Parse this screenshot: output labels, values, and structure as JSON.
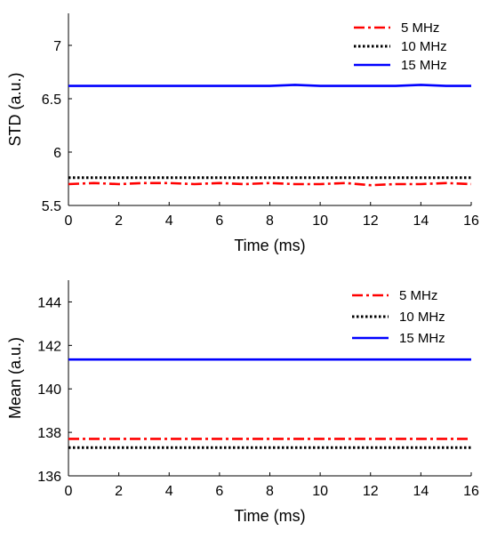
{
  "chart_data": [
    {
      "type": "line",
      "xlabel": "Time (ms)",
      "ylabel": "STD (a.u.)",
      "xlim": [
        0,
        16
      ],
      "ylim": [
        5.5,
        7.3
      ],
      "xticks": [
        0,
        2,
        4,
        6,
        8,
        10,
        12,
        14,
        16
      ],
      "xtick_labels": [
        "0",
        "2",
        "4",
        "6",
        "8",
        "10",
        "12",
        "14",
        "16"
      ],
      "yticks": [
        5.5,
        6,
        6.5,
        7
      ],
      "ytick_labels": [
        "5.5",
        "6",
        "6.5",
        "7"
      ],
      "grid": false,
      "legend_position": "top-right",
      "x": [
        0,
        1,
        2,
        3,
        4,
        5,
        6,
        7,
        8,
        9,
        10,
        11,
        12,
        13,
        14,
        15,
        16
      ],
      "series": [
        {
          "name": "5 MHz",
          "color": "#ff0000",
          "dash": "dash-dot",
          "values": [
            5.7,
            5.71,
            5.7,
            5.71,
            5.71,
            5.7,
            5.71,
            5.7,
            5.71,
            5.7,
            5.7,
            5.71,
            5.69,
            5.7,
            5.7,
            5.71,
            5.7
          ]
        },
        {
          "name": "10 MHz",
          "color": "#000000",
          "dash": "dotted",
          "values": [
            5.76,
            5.76,
            5.76,
            5.76,
            5.76,
            5.76,
            5.76,
            5.76,
            5.76,
            5.76,
            5.76,
            5.76,
            5.76,
            5.76,
            5.76,
            5.76,
            5.76
          ]
        },
        {
          "name": "15 MHz",
          "color": "#0000ff",
          "dash": "solid",
          "values": [
            6.62,
            6.62,
            6.62,
            6.62,
            6.62,
            6.62,
            6.62,
            6.62,
            6.62,
            6.63,
            6.62,
            6.62,
            6.62,
            6.62,
            6.63,
            6.62,
            6.62
          ]
        }
      ]
    },
    {
      "type": "line",
      "xlabel": "Time (ms)",
      "ylabel": "Mean (a.u.)",
      "xlim": [
        0,
        16
      ],
      "ylim": [
        136,
        145
      ],
      "xticks": [
        0,
        2,
        4,
        6,
        8,
        10,
        12,
        14,
        16
      ],
      "xtick_labels": [
        "0",
        "2",
        "4",
        "6",
        "8",
        "10",
        "12",
        "14",
        "16"
      ],
      "yticks": [
        136,
        138,
        140,
        142,
        144
      ],
      "ytick_labels": [
        "136",
        "138",
        "140",
        "142",
        "144"
      ],
      "grid": false,
      "legend_position": "top-right",
      "x": [
        0,
        1,
        2,
        3,
        4,
        5,
        6,
        7,
        8,
        9,
        10,
        11,
        12,
        13,
        14,
        15,
        16
      ],
      "series": [
        {
          "name": "5 MHz",
          "color": "#ff0000",
          "dash": "dash-dot",
          "values": [
            137.7,
            137.7,
            137.7,
            137.7,
            137.7,
            137.7,
            137.7,
            137.7,
            137.7,
            137.7,
            137.7,
            137.7,
            137.7,
            137.7,
            137.7,
            137.7,
            137.7
          ]
        },
        {
          "name": "10 MHz",
          "color": "#000000",
          "dash": "dotted",
          "values": [
            137.3,
            137.3,
            137.3,
            137.3,
            137.3,
            137.3,
            137.3,
            137.3,
            137.3,
            137.3,
            137.3,
            137.3,
            137.3,
            137.3,
            137.3,
            137.3,
            137.3
          ]
        },
        {
          "name": "15 MHz",
          "color": "#0000ff",
          "dash": "solid",
          "values": [
            141.35,
            141.35,
            141.35,
            141.35,
            141.35,
            141.35,
            141.35,
            141.35,
            141.35,
            141.35,
            141.35,
            141.35,
            141.35,
            141.35,
            141.35,
            141.35,
            141.35
          ]
        }
      ]
    }
  ]
}
